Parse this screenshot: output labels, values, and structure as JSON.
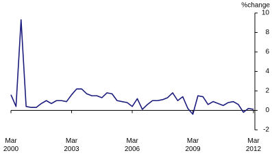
{
  "chart_data": {
    "type": "line",
    "y_label": "%change",
    "categories": [
      "Mar 2000",
      null,
      null,
      null,
      null,
      null,
      null,
      null,
      null,
      null,
      null,
      null,
      "Mar 2003",
      null,
      null,
      null,
      null,
      null,
      null,
      null,
      null,
      null,
      null,
      null,
      "Mar 2006",
      null,
      null,
      null,
      null,
      null,
      null,
      null,
      null,
      null,
      null,
      null,
      "Mar 2009",
      null,
      null,
      null,
      null,
      null,
      null,
      null,
      null,
      null,
      null,
      null,
      "Mar 2012"
    ],
    "series": [
      {
        "color": "#1b1b7d",
        "values": [
          1.6,
          0.4,
          9.3,
          0.4,
          0.3,
          0.3,
          0.7,
          1.0,
          0.7,
          1.0,
          1.0,
          0.9,
          1.6,
          2.2,
          2.2,
          1.7,
          1.5,
          1.5,
          1.3,
          1.8,
          1.7,
          1.0,
          0.9,
          0.8,
          0.4,
          1.2,
          0.1,
          0.6,
          1.0,
          1.0,
          1.1,
          1.3,
          1.8,
          1.0,
          1.4,
          0.2,
          -0.4,
          1.5,
          1.4,
          0.6,
          0.9,
          0.7,
          0.5,
          0.8,
          0.9,
          0.6,
          -0.2,
          0.2,
          0.1
        ]
      }
    ],
    "ylim": [
      -2,
      10
    ],
    "yticks": [
      -2,
      0,
      2,
      4,
      6,
      8,
      10
    ]
  }
}
